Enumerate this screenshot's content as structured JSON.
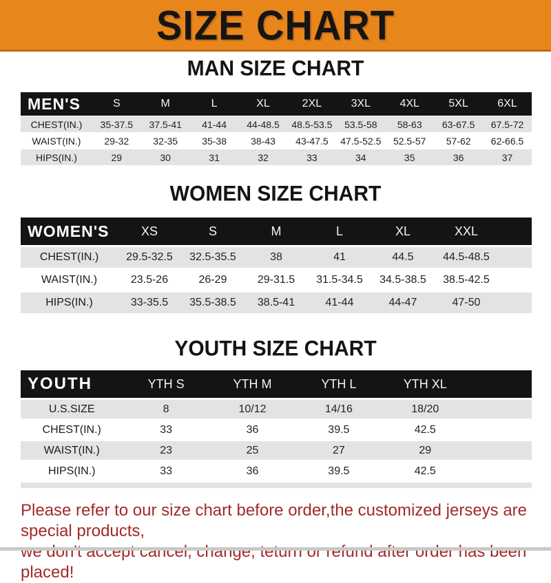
{
  "title": "SIZE CHART",
  "colors": {
    "banner_orange": "#E8861C",
    "header_band_black": "#141414",
    "row_grey": "#E3E3E3",
    "note_red": "#A32929"
  },
  "sections": [
    {
      "heading": "MAN SIZE CHART",
      "header_label": "MEN'S",
      "columns": [
        "S",
        "M",
        "L",
        "XL",
        "2XL",
        "3XL",
        "4XL",
        "5XL",
        "6XL"
      ],
      "rows": [
        {
          "label": "CHEST(IN.)",
          "values": [
            "35-37.5",
            "37.5-41",
            "41-44",
            "44-48.5",
            "48.5-53.5",
            "53.5-58",
            "58-63",
            "63-67.5",
            "67.5-72"
          ]
        },
        {
          "label": "WAIST(IN.)",
          "values": [
            "29-32",
            "32-35",
            "35-38",
            "38-43",
            "43-47.5",
            "47.5-52.5",
            "52.5-57",
            "57-62",
            "62-66.5"
          ]
        },
        {
          "label": "HIPS(IN.)",
          "values": [
            "29",
            "30",
            "31",
            "32",
            "33",
            "34",
            "35",
            "36",
            "37"
          ]
        }
      ]
    },
    {
      "heading": "WOMEN SIZE CHART",
      "header_label": "WOMEN'S",
      "columns": [
        "XS",
        "S",
        "M",
        "L",
        "XL",
        "XXL"
      ],
      "rows": [
        {
          "label": "CHEST(IN.)",
          "values": [
            "29.5-32.5",
            "32.5-35.5",
            "38",
            "41",
            "44.5",
            "44.5-48.5"
          ]
        },
        {
          "label": "WAIST(IN.)",
          "values": [
            "23.5-26",
            "26-29",
            "29-31.5",
            "31.5-34.5",
            "34.5-38.5",
            "38.5-42.5"
          ]
        },
        {
          "label": "HIPS(IN.)",
          "values": [
            "33-35.5",
            "35.5-38.5",
            "38.5-41",
            "41-44",
            "44-47",
            "47-50"
          ]
        }
      ]
    },
    {
      "heading": "YOUTH SIZE CHART",
      "header_label": "YOUTH",
      "columns": [
        "YTH S",
        "YTH M",
        "YTH L",
        "YTH XL"
      ],
      "rows": [
        {
          "label": "U.S.SIZE",
          "values": [
            "8",
            "10/12",
            "14/16",
            "18/20"
          ]
        },
        {
          "label": "CHEST(IN.)",
          "values": [
            "33",
            "36",
            "39.5",
            "42.5"
          ]
        },
        {
          "label": "WAIST(IN.)",
          "values": [
            "23",
            "25",
            "27",
            "29"
          ]
        },
        {
          "label": "HIPS(IN.)",
          "values": [
            "33",
            "36",
            "39.5",
            "42.5"
          ]
        }
      ]
    }
  ],
  "note": {
    "line1": "Please refer to our size chart before order,the customized jerseys are special products,",
    "line2": "we don't accept cancel, change, teturn or refund after order has been placed!"
  }
}
